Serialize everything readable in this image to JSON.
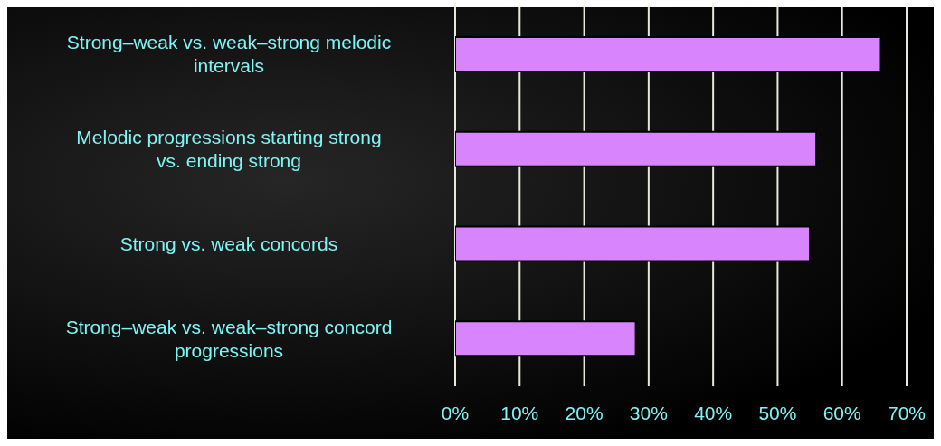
{
  "chart_data": {
    "type": "bar",
    "orientation": "horizontal",
    "categories": [
      "Strong–weak vs. weak–strong melodic intervals",
      "Melodic progressions starting strong vs. ending strong",
      "Strong vs. weak concords",
      "Strong–weak vs. weak–strong concord progressions"
    ],
    "values": [
      66,
      56,
      55,
      28
    ],
    "color": "#d884fc",
    "xlim": [
      0,
      70
    ],
    "xticks": [
      {
        "value": 0,
        "label": "0%"
      },
      {
        "value": 10,
        "label": "10%"
      },
      {
        "value": 20,
        "label": "20%"
      },
      {
        "value": 30,
        "label": "30%"
      },
      {
        "value": 40,
        "label": "40%"
      },
      {
        "value": 50,
        "label": "50%"
      },
      {
        "value": 60,
        "label": "60%"
      },
      {
        "value": 70,
        "label": "70%"
      }
    ],
    "grid": "x",
    "legend": false
  }
}
